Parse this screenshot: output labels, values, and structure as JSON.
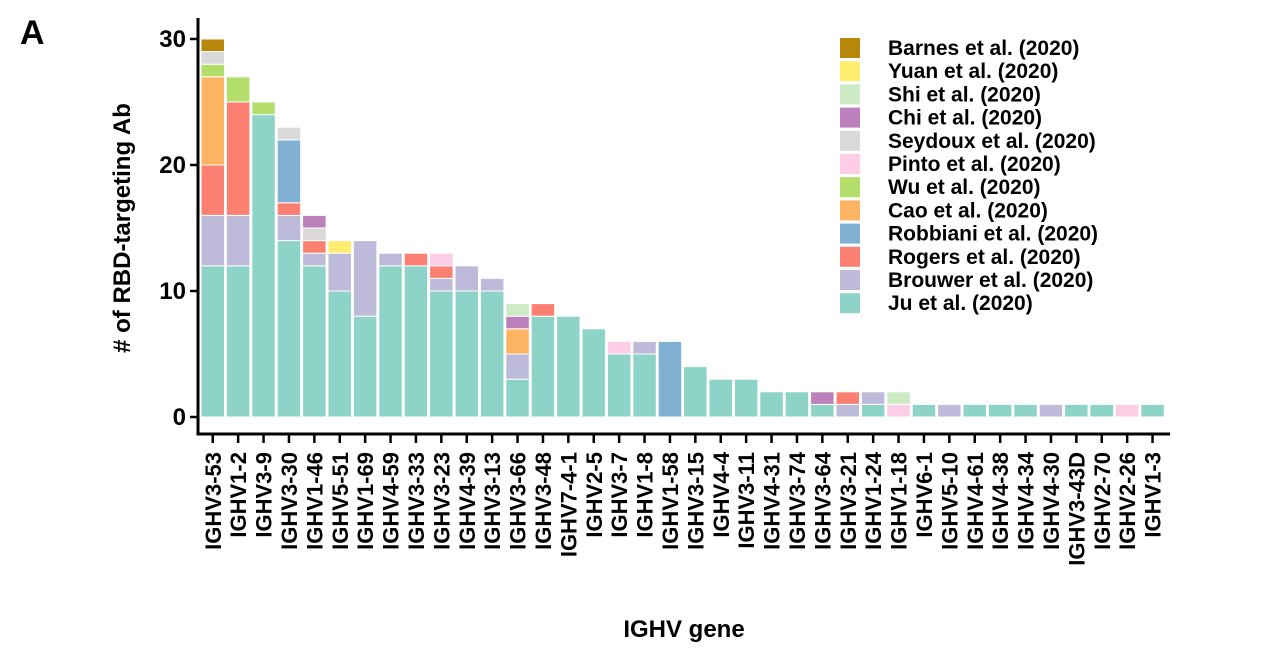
{
  "panel_label": "A",
  "chart_data": {
    "type": "bar",
    "stacked": true,
    "xlabel": "IGHV gene",
    "ylabel": "# of RBD-targeting Ab",
    "ylim": [
      0,
      31
    ],
    "yticks": [
      0,
      10,
      20,
      30
    ],
    "grid": false,
    "legend_position": "top-right",
    "categories": [
      "IGHV3-53",
      "IGHV1-2",
      "IGHV3-9",
      "IGHV3-30",
      "IGHV1-46",
      "IGHV5-51",
      "IGHV1-69",
      "IGHV4-59",
      "IGHV3-33",
      "IGHV3-23",
      "IGHV4-39",
      "IGHV3-13",
      "IGHV3-66",
      "IGHV3-48",
      "IGHV7-4-1",
      "IGHV2-5",
      "IGHV3-7",
      "IGHV1-8",
      "IGHV1-58",
      "IGHV3-15",
      "IGHV4-4",
      "IGHV3-11",
      "IGHV4-31",
      "IGHV3-74",
      "IGHV3-64",
      "IGHV3-21",
      "IGHV1-24",
      "IGHV1-18",
      "IGHV6-1",
      "IGHV5-10",
      "IGHV4-61",
      "IGHV4-38",
      "IGHV4-34",
      "IGHV4-30",
      "IGHV3-43D",
      "IGHV2-70",
      "IGHV2-26",
      "IGHV1-3"
    ],
    "series": [
      {
        "name": "Ju et al. (2020)",
        "color": "#8dd3c7",
        "values": [
          12,
          12,
          24,
          14,
          12,
          10,
          8,
          12,
          12,
          10,
          10,
          10,
          3,
          8,
          8,
          7,
          5,
          5,
          0,
          4,
          3,
          3,
          2,
          2,
          1,
          0,
          1,
          0,
          1,
          0,
          1,
          1,
          1,
          0,
          1,
          1,
          0,
          1
        ]
      },
      {
        "name": "Brouwer et al. (2020)",
        "color": "#bebada",
        "values": [
          4,
          4,
          0,
          2,
          1,
          3,
          6,
          1,
          0,
          1,
          2,
          1,
          2,
          0,
          0,
          0,
          0,
          1,
          0,
          0,
          0,
          0,
          0,
          0,
          0,
          1,
          1,
          0,
          0,
          1,
          0,
          0,
          0,
          1,
          0,
          0,
          0,
          0
        ]
      },
      {
        "name": "Rogers et al. (2020)",
        "color": "#fb8072",
        "values": [
          4,
          9,
          0,
          1,
          1,
          0,
          0,
          0,
          1,
          1,
          0,
          0,
          0,
          1,
          0,
          0,
          0,
          0,
          0,
          0,
          0,
          0,
          0,
          0,
          0,
          1,
          0,
          0,
          0,
          0,
          0,
          0,
          0,
          0,
          0,
          0,
          0,
          0
        ]
      },
      {
        "name": "Robbiani et al. (2020)",
        "color": "#80b1d3",
        "values": [
          0,
          0,
          0,
          5,
          0,
          0,
          0,
          0,
          0,
          0,
          0,
          0,
          0,
          0,
          0,
          0,
          0,
          0,
          6,
          0,
          0,
          0,
          0,
          0,
          0,
          0,
          0,
          0,
          0,
          0,
          0,
          0,
          0,
          0,
          0,
          0,
          0,
          0
        ]
      },
      {
        "name": "Cao et al. (2020)",
        "color": "#fdb462",
        "values": [
          7,
          0,
          0,
          0,
          0,
          0,
          0,
          0,
          0,
          0,
          0,
          0,
          2,
          0,
          0,
          0,
          0,
          0,
          0,
          0,
          0,
          0,
          0,
          0,
          0,
          0,
          0,
          0,
          0,
          0,
          0,
          0,
          0,
          0,
          0,
          0,
          0,
          0
        ]
      },
      {
        "name": "Wu et al. (2020)",
        "color": "#b3de69",
        "values": [
          1,
          2,
          1,
          0,
          0,
          0,
          0,
          0,
          0,
          0,
          0,
          0,
          0,
          0,
          0,
          0,
          0,
          0,
          0,
          0,
          0,
          0,
          0,
          0,
          0,
          0,
          0,
          0,
          0,
          0,
          0,
          0,
          0,
          0,
          0,
          0,
          0,
          0
        ]
      },
      {
        "name": "Pinto et al. (2020)",
        "color": "#fccde5",
        "values": [
          0,
          0,
          0,
          0,
          0,
          0,
          0,
          0,
          0,
          1,
          0,
          0,
          0,
          0,
          0,
          0,
          1,
          0,
          0,
          0,
          0,
          0,
          0,
          0,
          0,
          0,
          0,
          1,
          0,
          0,
          0,
          0,
          0,
          0,
          0,
          0,
          1,
          0
        ]
      },
      {
        "name": "Seydoux et al. (2020)",
        "color": "#d9d9d9",
        "values": [
          1,
          0,
          0,
          1,
          1,
          0,
          0,
          0,
          0,
          0,
          0,
          0,
          0,
          0,
          0,
          0,
          0,
          0,
          0,
          0,
          0,
          0,
          0,
          0,
          0,
          0,
          0,
          0,
          0,
          0,
          0,
          0,
          0,
          0,
          0,
          0,
          0,
          0
        ]
      },
      {
        "name": "Chi et al. (2020)",
        "color": "#bc80bd",
        "values": [
          0,
          0,
          0,
          0,
          1,
          0,
          0,
          0,
          0,
          0,
          0,
          0,
          1,
          0,
          0,
          0,
          0,
          0,
          0,
          0,
          0,
          0,
          0,
          0,
          1,
          0,
          0,
          0,
          0,
          0,
          0,
          0,
          0,
          0,
          0,
          0,
          0,
          0
        ]
      },
      {
        "name": "Shi et al. (2020)",
        "color": "#ccebc5",
        "values": [
          0,
          0,
          0,
          0,
          0,
          0,
          0,
          0,
          0,
          0,
          0,
          0,
          1,
          0,
          0,
          0,
          0,
          0,
          0,
          0,
          0,
          0,
          0,
          0,
          0,
          0,
          0,
          1,
          0,
          0,
          0,
          0,
          0,
          0,
          0,
          0,
          0,
          0
        ]
      },
      {
        "name": "Yuan et al. (2020)",
        "color": "#ffed6f",
        "values": [
          0,
          0,
          0,
          0,
          0,
          1,
          0,
          0,
          0,
          0,
          0,
          0,
          0,
          0,
          0,
          0,
          0,
          0,
          0,
          0,
          0,
          0,
          0,
          0,
          0,
          0,
          0,
          0,
          0,
          0,
          0,
          0,
          0,
          0,
          0,
          0,
          0,
          0
        ]
      },
      {
        "name": "Barnes et al. (2020)",
        "color": "#b8860b",
        "values": [
          1,
          0,
          0,
          0,
          0,
          0,
          0,
          0,
          0,
          0,
          0,
          0,
          0,
          0,
          0,
          0,
          0,
          0,
          0,
          0,
          0,
          0,
          0,
          0,
          0,
          0,
          0,
          0,
          0,
          0,
          0,
          0,
          0,
          0,
          0,
          0,
          0,
          0
        ]
      }
    ],
    "legend_order": [
      "Barnes et al. (2020)",
      "Yuan et al. (2020)",
      "Shi et al. (2020)",
      "Chi et al. (2020)",
      "Seydoux et al. (2020)",
      "Pinto et al. (2020)",
      "Wu et al. (2020)",
      "Cao et al. (2020)",
      "Robbiani et al. (2020)",
      "Rogers et al. (2020)",
      "Brouwer et al. (2020)",
      "Ju et al. (2020)"
    ]
  }
}
